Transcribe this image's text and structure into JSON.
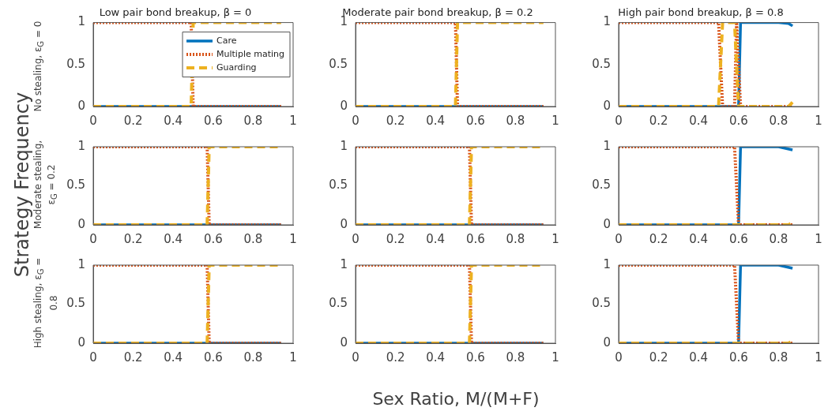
{
  "chart_data": [
    {
      "type": "line",
      "title": "Low pair bond breakup, β = 0",
      "ylabel": "No stealing, ε$_{G}$ = 0",
      "xlim": [
        0,
        1
      ],
      "xticks": [
        0,
        0.2,
        0.4,
        0.6,
        0.8,
        1
      ],
      "ylim": [
        0,
        1
      ],
      "yticks": [
        0,
        0.5,
        1
      ],
      "grid": false,
      "legend": "top right",
      "series": [
        {
          "name": "Care",
          "color": "#0072bd",
          "line_style": "solid",
          "x": [
            0,
            0.94
          ],
          "values": [
            0,
            0
          ]
        },
        {
          "name": "Multiple mating",
          "color": "#d95319",
          "line_style": "dotted",
          "x": [
            0,
            0.49,
            0.5,
            0.94
          ],
          "values": [
            1,
            1,
            0,
            0
          ]
        },
        {
          "name": "Guarding",
          "color": "#edb120",
          "line_style": "dashed",
          "x": [
            0,
            0.49,
            0.5,
            0.94
          ],
          "values": [
            0,
            0,
            1,
            1
          ]
        }
      ]
    },
    {
      "type": "line",
      "title": "Moderate pair bond breakup, β = 0.2",
      "xlim": [
        0,
        1
      ],
      "xticks": [
        0,
        0.2,
        0.4,
        0.6,
        0.8,
        1
      ],
      "ylim": [
        0,
        1
      ],
      "yticks": [
        0,
        0.5,
        1
      ],
      "grid": false,
      "series": [
        {
          "color": "#0072bd",
          "line_style": "solid",
          "x": [
            0,
            0.94
          ],
          "values": [
            0,
            0
          ]
        },
        {
          "color": "#d95319",
          "line_style": "dotted",
          "x": [
            0,
            0.5,
            0.51,
            0.94
          ],
          "values": [
            1,
            1,
            0,
            0
          ]
        },
        {
          "color": "#edb120",
          "line_style": "dashed",
          "x": [
            0,
            0.5,
            0.51,
            0.94
          ],
          "values": [
            0,
            0,
            1,
            1
          ]
        }
      ]
    },
    {
      "type": "line",
      "title": "High pair bond breakup, β = 0.8",
      "xlim": [
        0,
        1
      ],
      "xticks": [
        0,
        0.2,
        0.4,
        0.6,
        0.8,
        1
      ],
      "ylim": [
        0,
        1
      ],
      "yticks": [
        0,
        0.5,
        1
      ],
      "grid": false,
      "series": [
        {
          "color": "#0072bd",
          "line_style": "solid",
          "x": [
            0,
            0.6,
            0.61,
            0.8,
            0.85,
            0.87
          ],
          "values": [
            0,
            0,
            1,
            1,
            0.99,
            0.96
          ]
        },
        {
          "color": "#d95319",
          "line_style": "dotted",
          "x": [
            0,
            0.5,
            0.52,
            0.58,
            0.59,
            0.61,
            0.87
          ],
          "values": [
            1,
            1,
            0,
            0,
            1,
            0,
            0
          ]
        },
        {
          "color": "#edb120",
          "line_style": "dashed",
          "x": [
            0,
            0.5,
            0.52,
            0.58,
            0.6,
            0.85,
            0.87
          ],
          "values": [
            0,
            0,
            1,
            1,
            0,
            0,
            0.05
          ]
        }
      ]
    },
    {
      "type": "line",
      "ylabel": "Moderate stealing, ε$_{G}$ = 0.2",
      "annotations": [
        "Strategy Frequency"
      ],
      "xlim": [
        0,
        1
      ],
      "xticks": [
        0,
        0.2,
        0.4,
        0.6,
        0.8,
        1
      ],
      "ylim": [
        0,
        1
      ],
      "yticks": [
        0,
        0.5,
        1
      ],
      "grid": false,
      "series": [
        {
          "color": "#0072bd",
          "line_style": "solid",
          "x": [
            0,
            0.94
          ],
          "values": [
            0,
            0
          ]
        },
        {
          "color": "#d95319",
          "line_style": "dotted",
          "x": [
            0,
            0.57,
            0.58,
            0.94
          ],
          "values": [
            1,
            1,
            0,
            0
          ]
        },
        {
          "color": "#edb120",
          "line_style": "dashed",
          "x": [
            0,
            0.57,
            0.58,
            0.94
          ],
          "values": [
            0,
            0,
            1,
            1
          ]
        }
      ]
    },
    {
      "type": "line",
      "xlim": [
        0,
        1
      ],
      "xticks": [
        0,
        0.2,
        0.4,
        0.6,
        0.8,
        1
      ],
      "ylim": [
        0,
        1
      ],
      "yticks": [
        0,
        0.5,
        1
      ],
      "grid": false,
      "series": [
        {
          "color": "#0072bd",
          "line_style": "solid",
          "x": [
            0,
            0.94
          ],
          "values": [
            0,
            0
          ]
        },
        {
          "color": "#d95319",
          "line_style": "dotted",
          "x": [
            0,
            0.57,
            0.58,
            0.94
          ],
          "values": [
            1,
            1,
            0,
            0
          ]
        },
        {
          "color": "#edb120",
          "line_style": "dashed",
          "x": [
            0,
            0.57,
            0.58,
            0.94
          ],
          "values": [
            0,
            0,
            1,
            1
          ]
        }
      ]
    },
    {
      "type": "line",
      "xlim": [
        0,
        1
      ],
      "xticks": [
        0,
        0.2,
        0.4,
        0.6,
        0.8,
        1
      ],
      "ylim": [
        0,
        1
      ],
      "yticks": [
        0,
        0.5,
        1
      ],
      "grid": false,
      "series": [
        {
          "color": "#0072bd",
          "line_style": "solid",
          "x": [
            0,
            0.6,
            0.61,
            0.8,
            0.87
          ],
          "values": [
            0,
            0,
            1,
            1,
            0.96
          ]
        },
        {
          "color": "#d95319",
          "line_style": "dotted",
          "x": [
            0,
            0.58,
            0.6,
            0.87
          ],
          "values": [
            1,
            1,
            0,
            0
          ]
        },
        {
          "color": "#edb120",
          "line_style": "dashed",
          "x": [
            0,
            0.85,
            0.87
          ],
          "values": [
            0,
            0,
            0.03
          ]
        }
      ]
    },
    {
      "type": "line",
      "ylabel": "High stealing, ε$_{G}$ = 0.8",
      "xlim": [
        0,
        1
      ],
      "xticks": [
        0,
        0.2,
        0.4,
        0.6,
        0.8,
        1
      ],
      "ylim": [
        0,
        1
      ],
      "yticks": [
        0,
        0.5,
        1
      ],
      "grid": false,
      "series": [
        {
          "color": "#0072bd",
          "line_style": "solid",
          "x": [
            0,
            0.94
          ],
          "values": [
            0,
            0
          ]
        },
        {
          "color": "#d95319",
          "line_style": "dotted",
          "x": [
            0,
            0.57,
            0.58,
            0.94
          ],
          "values": [
            1,
            1,
            0,
            0
          ]
        },
        {
          "color": "#edb120",
          "line_style": "dashed",
          "x": [
            0,
            0.57,
            0.58,
            0.94
          ],
          "values": [
            0,
            0,
            1,
            1
          ]
        }
      ]
    },
    {
      "type": "line",
      "annotations": [
        "Sex Ratio, M/(M+F)"
      ],
      "xlim": [
        0,
        1
      ],
      "xticks": [
        0,
        0.2,
        0.4,
        0.6,
        0.8,
        1
      ],
      "ylim": [
        0,
        1
      ],
      "yticks": [
        0,
        0.5,
        1
      ],
      "grid": false,
      "series": [
        {
          "color": "#0072bd",
          "line_style": "solid",
          "x": [
            0,
            0.94
          ],
          "values": [
            0,
            0
          ]
        },
        {
          "color": "#d95319",
          "line_style": "dotted",
          "x": [
            0,
            0.57,
            0.58,
            0.94
          ],
          "values": [
            1,
            1,
            0,
            0
          ]
        },
        {
          "color": "#edb120",
          "line_style": "dashed",
          "x": [
            0,
            0.57,
            0.58,
            0.94
          ],
          "values": [
            0,
            0,
            1,
            1
          ]
        }
      ]
    },
    {
      "type": "line",
      "xlim": [
        0,
        1
      ],
      "xticks": [
        0,
        0.2,
        0.4,
        0.6,
        0.8,
        1
      ],
      "ylim": [
        0,
        1
      ],
      "yticks": [
        0,
        0.5,
        1
      ],
      "grid": false,
      "series": [
        {
          "color": "#0072bd",
          "line_style": "solid",
          "x": [
            0,
            0.6,
            0.61,
            0.8,
            0.87
          ],
          "values": [
            0,
            0,
            1,
            1,
            0.96
          ]
        },
        {
          "color": "#d95319",
          "line_style": "dotted",
          "x": [
            0,
            0.58,
            0.6,
            0.87
          ],
          "values": [
            1,
            1,
            0,
            0
          ]
        },
        {
          "color": "#edb120",
          "line_style": "dashed",
          "x": [
            0,
            0.85,
            0.87
          ],
          "values": [
            0,
            0,
            0.03
          ]
        }
      ]
    }
  ]
}
